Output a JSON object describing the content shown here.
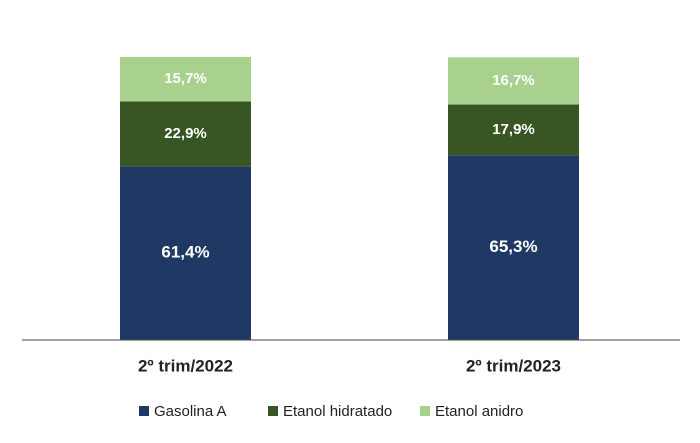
{
  "chart_data": {
    "type": "stacked_bar",
    "categories": [
      "2º trim/2022",
      "2º trim/2023"
    ],
    "series": [
      {
        "name": "Gasolina A",
        "color": "#203864",
        "values": [
          61.4,
          65.3
        ],
        "value_labels": [
          "61,4%",
          "65,3%"
        ]
      },
      {
        "name": "Etanol hidratado",
        "color": "#375623",
        "values": [
          22.9,
          17.9
        ],
        "value_labels": [
          "22,9%",
          "17,9%"
        ]
      },
      {
        "name": "Etanol anidro",
        "color": "#a9d18e",
        "values": [
          15.7,
          16.7
        ],
        "value_labels": [
          "15,7%",
          "16,7%"
        ]
      }
    ]
  }
}
